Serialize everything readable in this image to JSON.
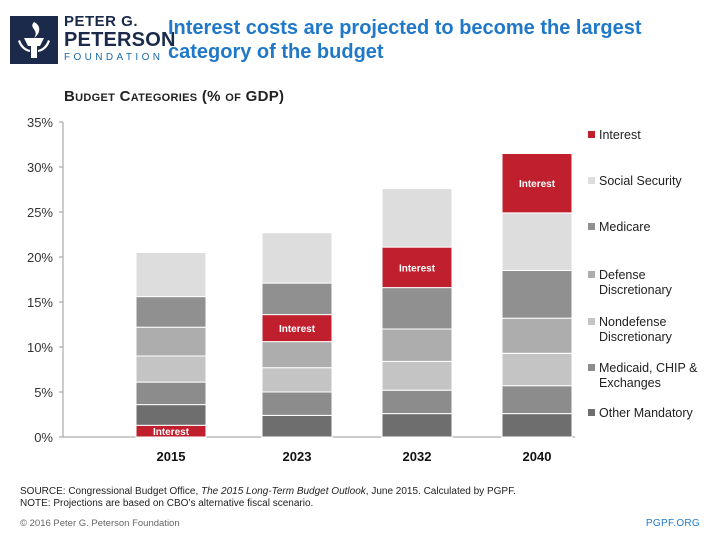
{
  "logo": {
    "line1": "PETER G.",
    "line2": "PETERSON",
    "line3": "FOUNDATION",
    "colors": {
      "dark": "#1b2a4a",
      "accent": "#1b6aa8"
    }
  },
  "source": {
    "prefix": "SOURCE: Congressional Budget Office, ",
    "italic": "The 2015 Long-Term Budget Outlook",
    "suffix": ", June 2015. Calculated by PGPF.",
    "note": "NOTE: Projections are based on CBO’s alternative fiscal scenario."
  },
  "footer": {
    "copyright": "© 2016 Peter G. Peterson Foundation",
    "site": "PGPF.ORG"
  },
  "chart_data": {
    "type": "bar",
    "stacked": true,
    "title": "Interest costs are projected to become the largest category of the budget",
    "subtitle": "Budget Categories (% of GDP)",
    "xlabel": "",
    "ylabel": "",
    "ylim": [
      0,
      35
    ],
    "yticks": [
      0,
      5,
      10,
      15,
      20,
      25,
      30,
      35
    ],
    "ytick_labels": [
      "0%",
      "5%",
      "10%",
      "15%",
      "20%",
      "25%",
      "30%",
      "35%"
    ],
    "categories": [
      "2015",
      "2023",
      "2032",
      "2040"
    ],
    "series": [
      {
        "name": "Interest",
        "color": "#c0202e",
        "values": [
          1.3,
          3.0,
          4.5,
          6.6
        ]
      },
      {
        "name": "Other Mandatory",
        "color": "#6e6e6e",
        "values": [
          2.3,
          2.4,
          2.6,
          2.6
        ]
      },
      {
        "name": "Medicaid, CHIP & Exchanges",
        "color": "#8c8c8c",
        "values": [
          2.5,
          2.6,
          2.6,
          3.1
        ]
      },
      {
        "name": "Nondefense Discretionary",
        "color": "#c4c4c4",
        "values": [
          2.9,
          2.7,
          3.2,
          3.6
        ]
      },
      {
        "name": "Defense Discretionary",
        "color": "#adadad",
        "values": [
          3.2,
          2.9,
          3.6,
          3.9
        ]
      },
      {
        "name": "Medicare",
        "color": "#909090",
        "values": [
          3.4,
          3.5,
          4.6,
          5.3
        ]
      },
      {
        "name": "Social Security",
        "color": "#dddddd",
        "values": [
          4.9,
          5.6,
          6.5,
          6.4
        ]
      }
    ],
    "stack_order": {
      "2015": [
        "Interest",
        "Other Mandatory",
        "Medicaid, CHIP & Exchanges",
        "Nondefense Discretionary",
        "Defense Discretionary",
        "Medicare",
        "Social Security"
      ],
      "2023": [
        "Other Mandatory",
        "Medicaid, CHIP & Exchanges",
        "Nondefense Discretionary",
        "Defense Discretionary",
        "Interest",
        "Medicare",
        "Social Security"
      ],
      "2032": [
        "Other Mandatory",
        "Medicaid, CHIP & Exchanges",
        "Nondefense Discretionary",
        "Defense Discretionary",
        "Medicare",
        "Interest",
        "Social Security"
      ],
      "2040": [
        "Other Mandatory",
        "Medicaid, CHIP & Exchanges",
        "Nondefense Discretionary",
        "Defense Discretionary",
        "Medicare",
        "Social Security",
        "Interest"
      ]
    },
    "segment_label": "Interest",
    "legend": [
      {
        "label": "Interest",
        "color": "#c0202e"
      },
      {
        "label": "Social Security",
        "color": "#dddddd"
      },
      {
        "label": "Medicare",
        "color": "#909090"
      },
      {
        "label": "Defense Discretionary",
        "color": "#adadad"
      },
      {
        "label": "Nondefense Discretionary",
        "color": "#c4c4c4"
      },
      {
        "label": "Medicaid, CHIP & Exchanges",
        "color": "#8c8c8c"
      },
      {
        "label": "Other Mandatory",
        "color": "#6e6e6e"
      }
    ],
    "legend_position": "right",
    "grid": false
  }
}
